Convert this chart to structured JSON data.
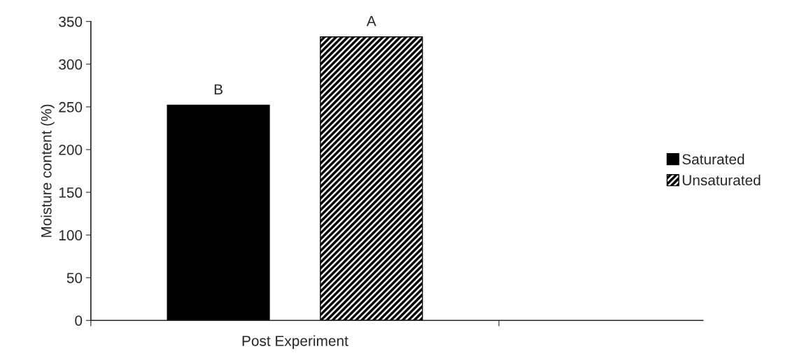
{
  "chart_data": {
    "type": "bar",
    "ylabel": "Moisture content (%)",
    "categories": [
      "Post Experiment"
    ],
    "series": [
      {
        "name": "Saturated",
        "color": "#000000",
        "values": [
          252
        ]
      },
      {
        "name": "Unsaturated",
        "color": "#000000",
        "values": [
          332
        ]
      }
    ],
    "ylim": [
      0,
      350
    ],
    "yticks": [
      0,
      50,
      100,
      150,
      200,
      250,
      300,
      350
    ],
    "grid": false,
    "legend": "right",
    "annotations": [
      "B",
      "A"
    ]
  }
}
